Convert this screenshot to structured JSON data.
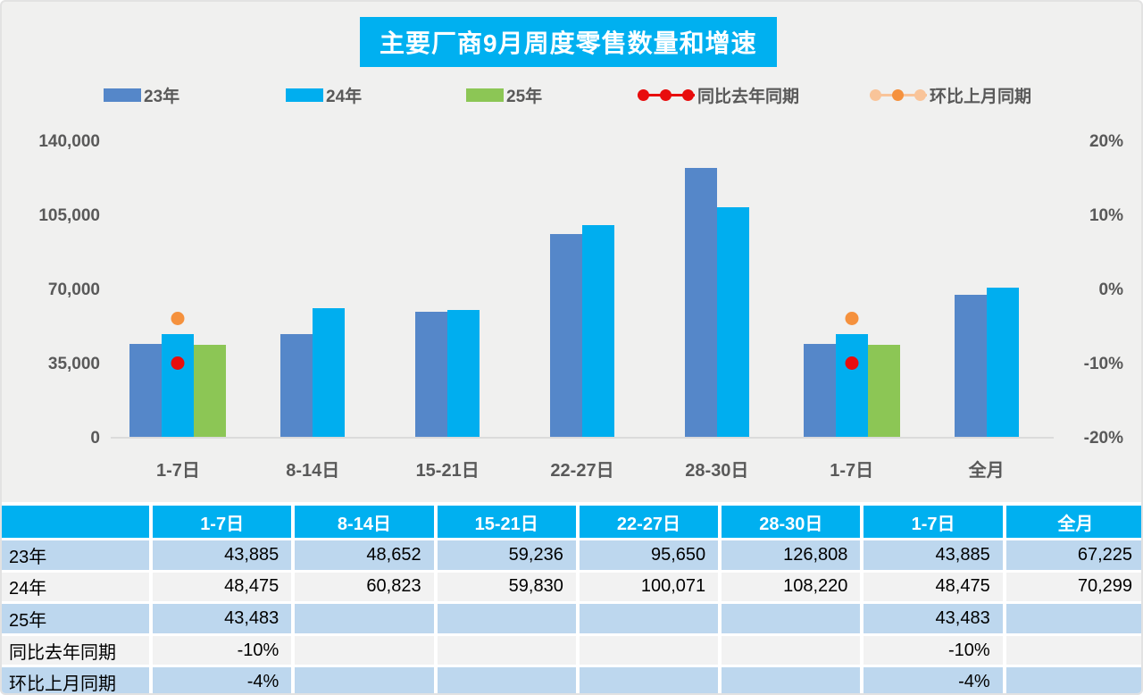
{
  "title": {
    "text": "主要厂商9月周度零售数量和增速"
  },
  "colors": {
    "accent_cyan": "#00B0F0",
    "bar_blue": "#5587C9",
    "bar_cyan": "#00AEEF",
    "bar_green": "#8CC655",
    "dot_red": "#E80D0D",
    "dot_orange": "#F5913D",
    "dot_orange_light": "#F9C499",
    "row_blue": "#BDD7EE",
    "row_gray": "#F2F2F2",
    "axis_text": "#595959"
  },
  "legend": [
    {
      "label": "23年",
      "type": "swatch",
      "color": "#5587C9",
      "x": 114
    },
    {
      "label": "24年",
      "type": "swatch",
      "color": "#00AEEF",
      "x": 318
    },
    {
      "label": "25年",
      "type": "swatch",
      "color": "#8CC655",
      "x": 520
    },
    {
      "label": "同比去年同期",
      "type": "dotline",
      "line_color": "#E80D0D",
      "dot_colors": [
        "#E80D0D",
        "#E80D0D",
        "#E80D0D"
      ],
      "x": 712
    },
    {
      "label": "环比上月同期",
      "type": "dotline",
      "line_color": "#F9C499",
      "dot_colors": [
        "#F9C499",
        "#F5913D",
        "#F9C499"
      ],
      "x": 972
    }
  ],
  "chart_data": {
    "type": "bar",
    "title": "主要厂商9月周度零售数量和增速",
    "categories": [
      "1-7日",
      "8-14日",
      "15-21日",
      "22-27日",
      "28-30日",
      "1-7日",
      "全月"
    ],
    "series": [
      {
        "name": "23年",
        "color": "#5587C9",
        "values": [
          43885,
          48652,
          59236,
          95650,
          126808,
          43885,
          67225
        ]
      },
      {
        "name": "24年",
        "color": "#00AEEF",
        "values": [
          48475,
          60823,
          59830,
          100071,
          108220,
          48475,
          70299
        ]
      },
      {
        "name": "25年",
        "color": "#8CC655",
        "values": [
          43483,
          null,
          null,
          null,
          null,
          43483,
          null
        ]
      }
    ],
    "dot_series": [
      {
        "name": "同比去年同期",
        "color": "#E80D0D",
        "axis": "right",
        "values_pct": [
          -10,
          null,
          null,
          null,
          null,
          -10,
          null
        ]
      },
      {
        "name": "环比上月同期",
        "color": "#F5913D",
        "axis": "right",
        "values_pct": [
          -4,
          null,
          null,
          null,
          null,
          -4,
          null
        ]
      }
    ],
    "left_axis": {
      "label": "",
      "min": 0,
      "max": 140000,
      "ticks": [
        "140,000",
        "105,000",
        "70,000",
        "35,000",
        "0"
      ]
    },
    "right_axis": {
      "label": "",
      "min": -20,
      "max": 20,
      "ticks": [
        "20%",
        "10%",
        "0%",
        "-10%",
        "-20%"
      ]
    },
    "grid": false,
    "legend_position": "top"
  },
  "table": {
    "header": [
      "",
      "1-7日",
      "8-14日",
      "15-21日",
      "22-27日",
      "28-30日",
      "1-7日",
      "全月"
    ],
    "rows": [
      {
        "label": "23年",
        "values": [
          "43,885",
          "48,652",
          "59,236",
          "95,650",
          "126,808",
          "43,885",
          "67,225"
        ]
      },
      {
        "label": "24年",
        "values": [
          "48,475",
          "60,823",
          "59,830",
          "100,071",
          "108,220",
          "48,475",
          "70,299"
        ]
      },
      {
        "label": "25年",
        "values": [
          "43,483",
          "",
          "",
          "",
          "",
          "43,483",
          ""
        ]
      },
      {
        "label": "同比去年同期",
        "values": [
          "-10%",
          "",
          "",
          "",
          "",
          "-10%",
          ""
        ]
      },
      {
        "label": "环比上月同期",
        "values": [
          "-4%",
          "",
          "",
          "",
          "",
          "-4%",
          ""
        ]
      }
    ]
  }
}
